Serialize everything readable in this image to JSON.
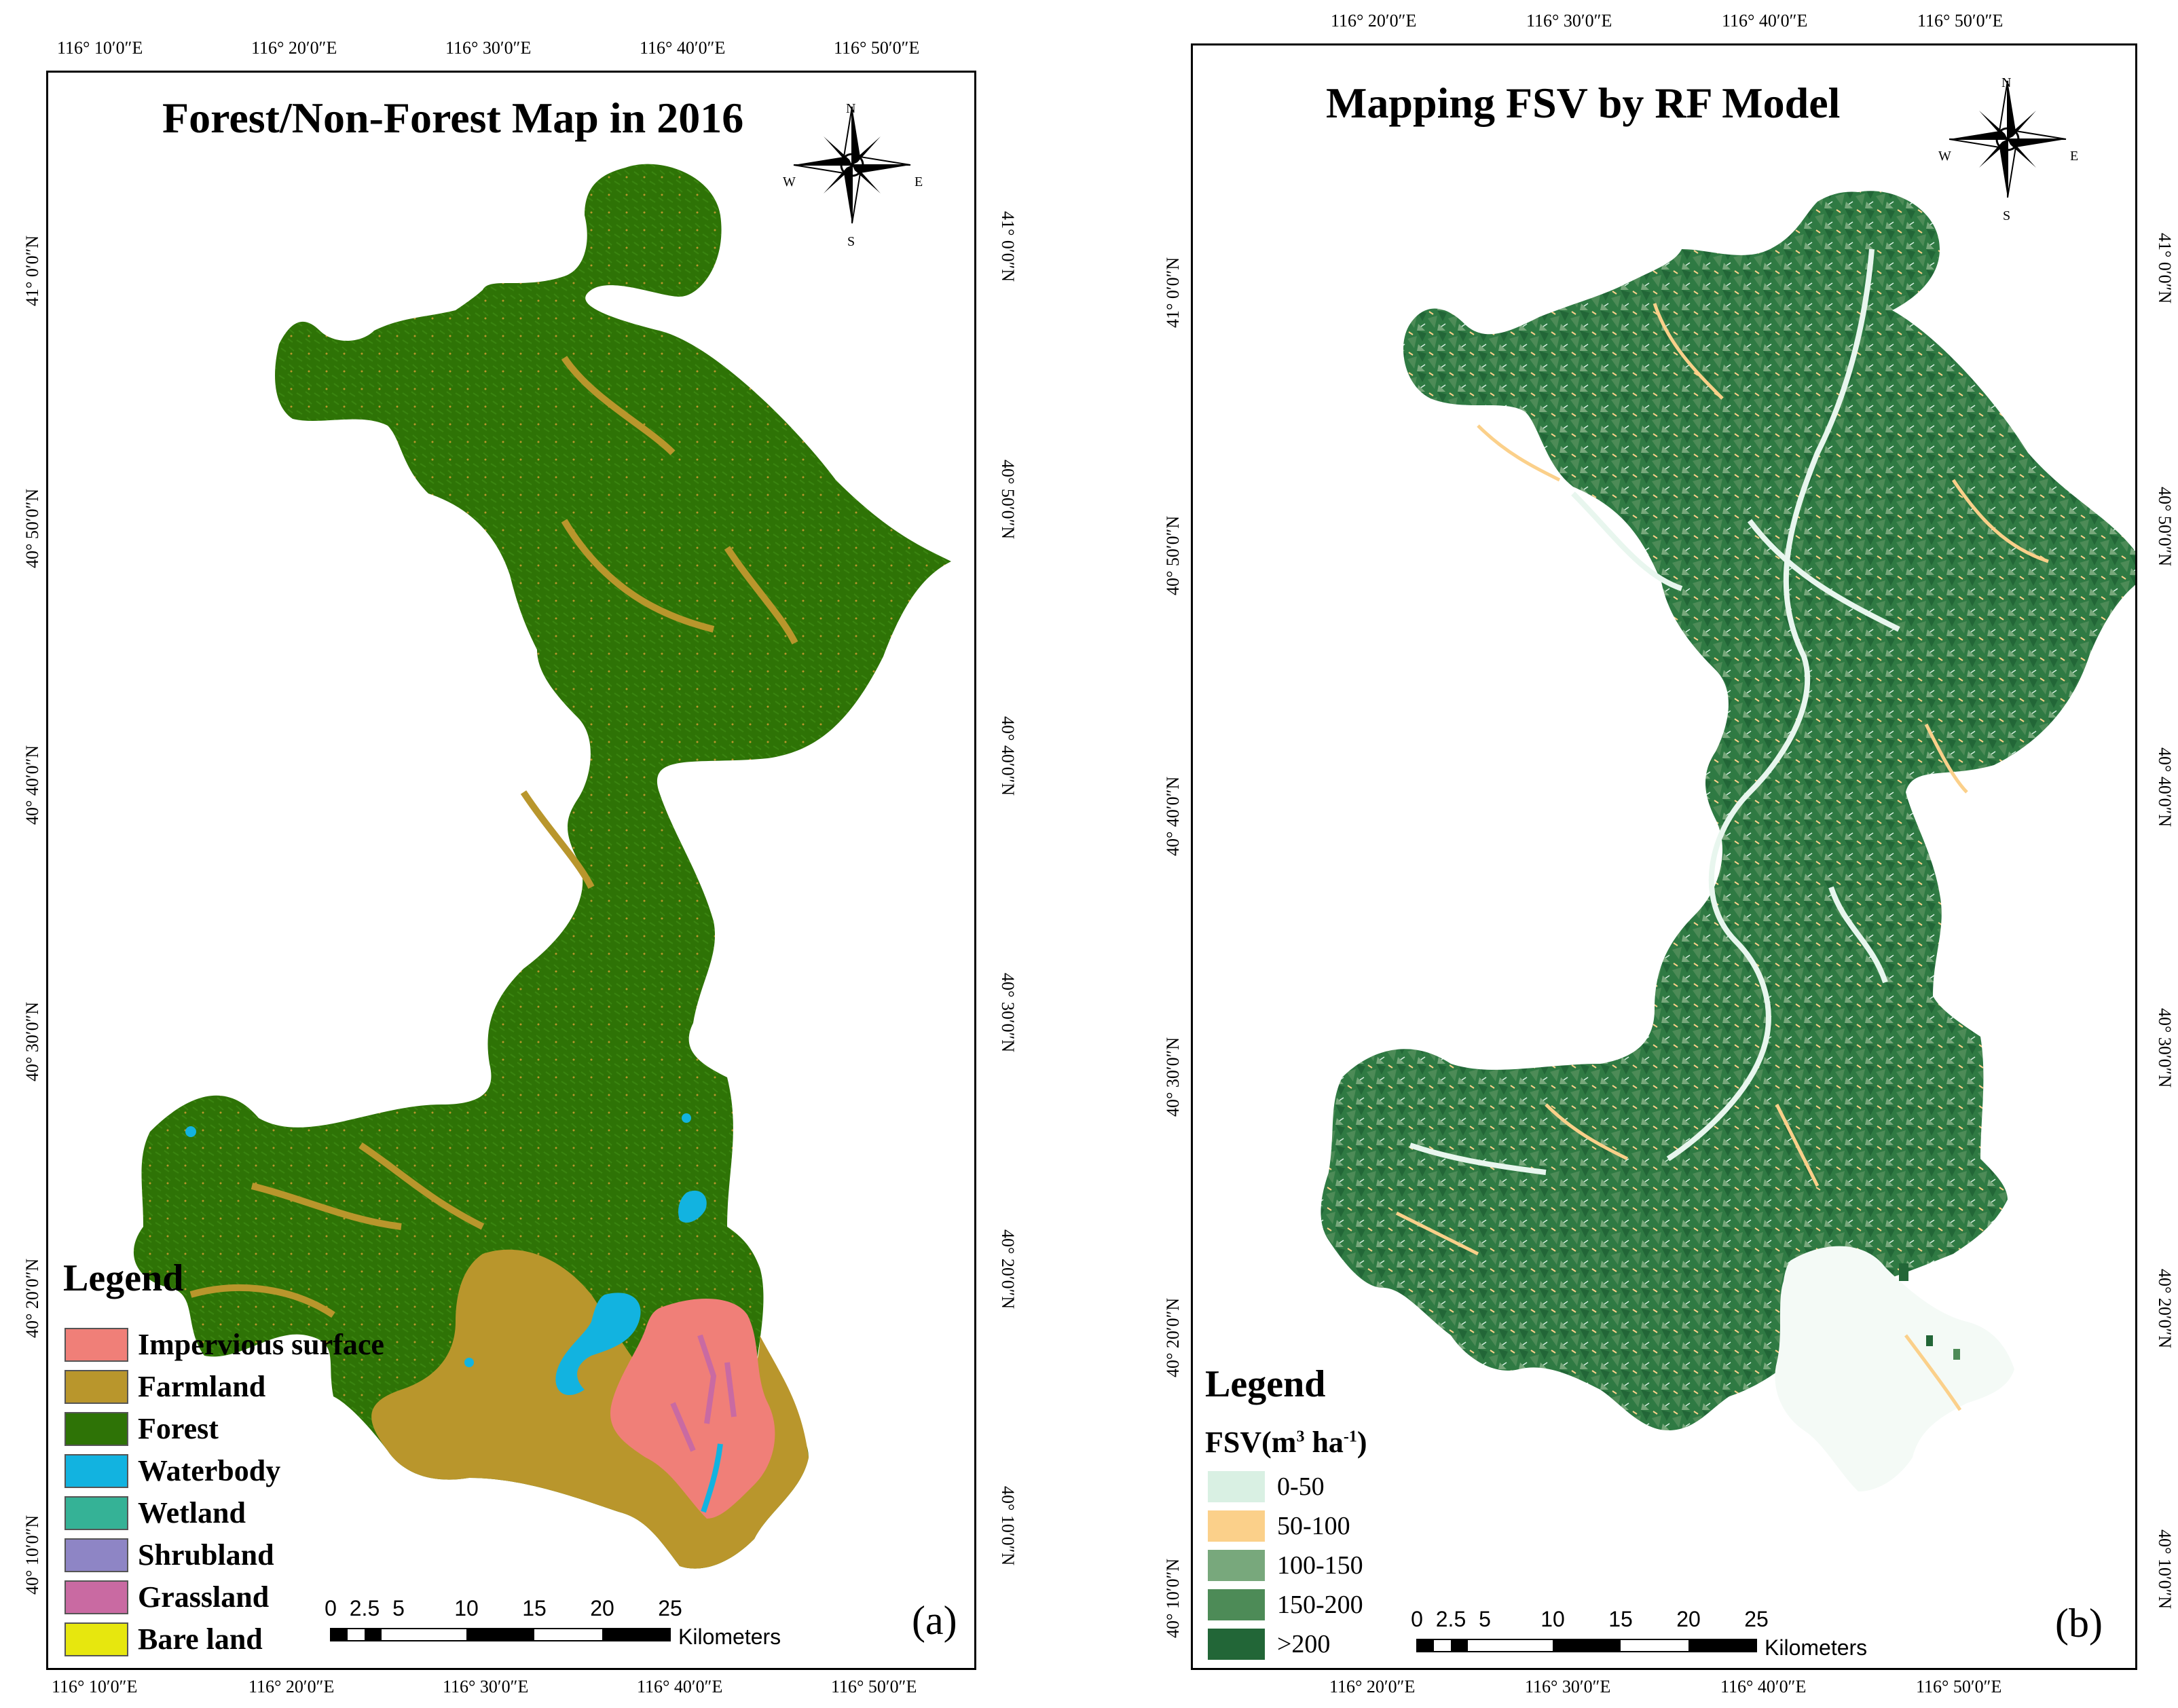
{
  "panel_a": {
    "title": "Forest/Non-Forest Map in 2016",
    "tag": "(a)",
    "legend_title": "Legend",
    "legend_items": [
      {
        "label": "Impervious surface",
        "color": "#f07f78"
      },
      {
        "label": "Farmland",
        "color": "#b9962c"
      },
      {
        "label": "Forest",
        "color": "#2e7306"
      },
      {
        "label": "Waterbody",
        "color": "#12b3e0"
      },
      {
        "label": "Wetland",
        "color": "#35b296"
      },
      {
        "label": "Shrubland",
        "color": "#8e85c5"
      },
      {
        "label": "Grassland",
        "color": "#c96aa2"
      },
      {
        "label": "Bare land",
        "color": "#e7e70e"
      }
    ],
    "top_lon": [
      "116° 10′0″E",
      "116° 20′0″E",
      "116° 30′0″E",
      "116° 40′0″E",
      "116° 50′0″E"
    ],
    "bottom_lon": [
      "116° 10′0″E",
      "116° 20′0″E",
      "116° 30′0″E",
      "116° 40′0″E",
      "116° 50′0″E"
    ],
    "left_lat": [
      "41° 0′0″N",
      "40° 50′0″N",
      "40° 40′0″N",
      "40° 30′0″N",
      "40° 20′0″N",
      "40° 10′0″N"
    ],
    "right_lat": [
      "41° 0′0″N",
      "40° 50′0″N",
      "40° 40′0″N",
      "40° 30′0″N",
      "40° 20′0″N",
      "40° 10′0″N"
    ],
    "scale_ticks": [
      "0",
      "2.5",
      "5",
      "10",
      "15",
      "20",
      "25"
    ],
    "scale_unit": "Kilometers",
    "compass": {
      "n": "N",
      "s": "S",
      "e": "E",
      "w": "W"
    }
  },
  "panel_b": {
    "title": "Mapping FSV by RF Model",
    "tag": "(b)",
    "legend_title": "Legend",
    "legend_subtitle_prefix": "FSV(m",
    "legend_subtitle_sup1": "3",
    "legend_subtitle_mid": " ha",
    "legend_subtitle_sup2": "-1",
    "legend_subtitle_suffix": ")",
    "legend_items": [
      {
        "label": "0-50",
        "color": "#d9f0e3"
      },
      {
        "label": "50-100",
        "color": "#fbd08a"
      },
      {
        "label": "100-150",
        "color": "#78a87c"
      },
      {
        "label": "150-200",
        "color": "#4d8b57"
      },
      {
        "label": ">200",
        "color": "#226637"
      }
    ],
    "top_lon": [
      "116° 20′0″E",
      "116° 30′0″E",
      "116° 40′0″E",
      "116° 50′0″E"
    ],
    "bottom_lon": [
      "116° 20′0″E",
      "116° 30′0″E",
      "116° 40′0″E",
      "116° 50′0″E"
    ],
    "left_lat": [
      "41° 0′0″N",
      "40° 50′0″N",
      "40° 40′0″N",
      "40° 30′0″N",
      "40° 20′0″N",
      "40° 10′0″N"
    ],
    "right_lat": [
      "41° 0′0″N",
      "40° 50′0″N",
      "40° 40′0″N",
      "40° 30′0″N",
      "40° 20′0″N",
      "40° 10′0″N"
    ],
    "scale_ticks": [
      "0",
      "2.5",
      "5",
      "10",
      "15",
      "20",
      "25"
    ],
    "scale_unit": "Kilometers",
    "compass": {
      "n": "N",
      "s": "S",
      "e": "E",
      "w": "W"
    }
  }
}
